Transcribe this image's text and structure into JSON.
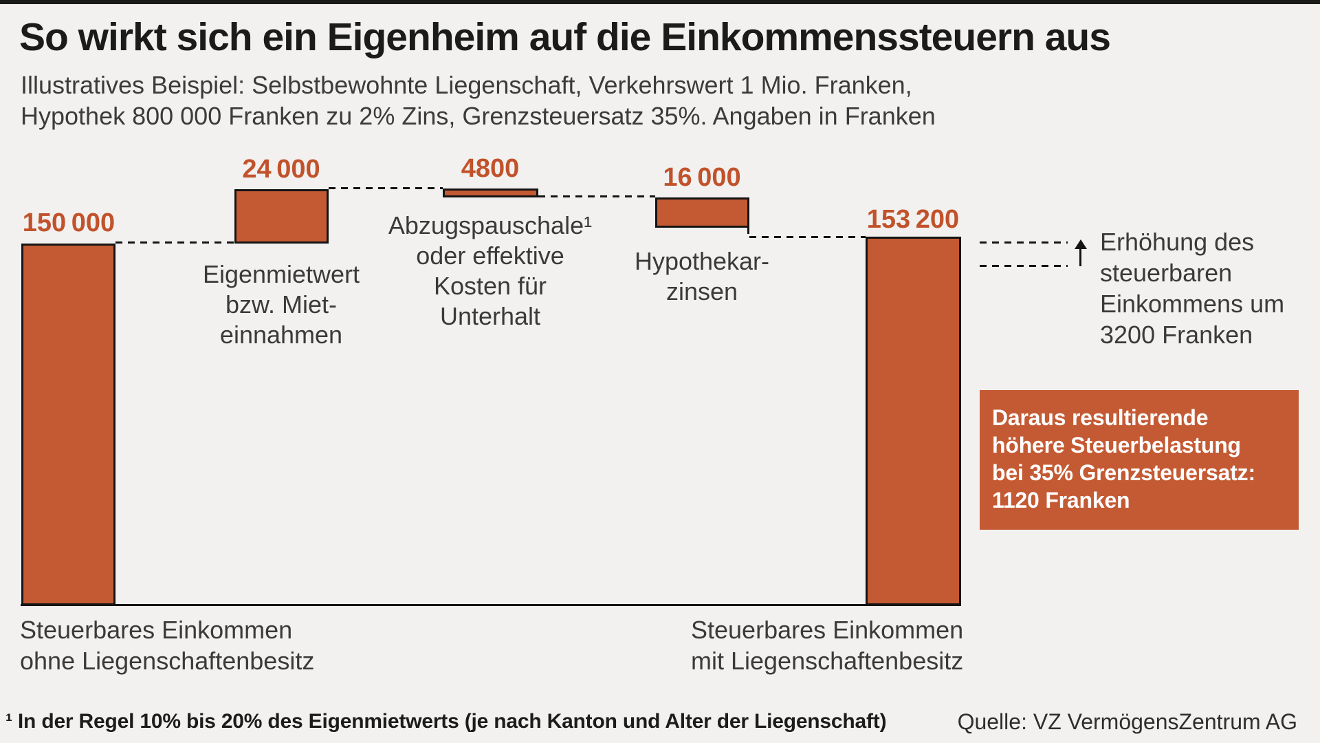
{
  "header": {
    "title": "So wirkt sich ein Eigenheim auf die Einkommenssteuern aus",
    "subtitle_line1": "Illustratives Beispiel: Selbstbewohnte Liegenschaft, Verkehrswert 1 Mio. Franken,",
    "subtitle_line2": "Hypothek 800 000 Franken zu 2% Zins, Grenzsteuersatz 35%. Angaben in Franken"
  },
  "chart_data": {
    "type": "bar",
    "variant": "waterfall",
    "unit": "Franken",
    "ylim": [
      0,
      175000
    ],
    "grid": false,
    "bars": [
      {
        "name": "steuerbares-einkommen-ohne",
        "kind": "total",
        "value": 150000,
        "start": 0,
        "end": 150000,
        "display_value": "150 000",
        "label_lines": [
          "Steuerbares Einkommen",
          "ohne Liegenschaftenbesitz"
        ]
      },
      {
        "name": "eigenmietwert",
        "kind": "increase",
        "value": 24000,
        "start": 150000,
        "end": 174000,
        "display_value": "24 000",
        "label_lines": [
          "Eigenmietwert",
          "bzw. Miet-",
          "einnahmen"
        ]
      },
      {
        "name": "abzugspauschale",
        "kind": "decrease",
        "value": -4800,
        "start": 174000,
        "end": 169200,
        "display_value": "4800",
        "label_lines": [
          "Abzugspauschale¹",
          "oder effektive",
          "Kosten für",
          "Unterhalt"
        ]
      },
      {
        "name": "hypothekarzinsen",
        "kind": "decrease",
        "value": -16000,
        "start": 169200,
        "end": 153200,
        "display_value": "16 000",
        "label_lines": [
          "Hypothekar-",
          "zinsen"
        ]
      },
      {
        "name": "steuerbares-einkommen-mit",
        "kind": "total",
        "value": 153200,
        "start": 0,
        "end": 153200,
        "display_value": "153 200",
        "label_lines": [
          "Steuerbares Einkommen",
          "mit Liegenschaftenbesitz"
        ]
      }
    ],
    "annotation": {
      "delta": 3200,
      "text": "Erhöhung des steuerbaren Einkommens um 3200 Franken",
      "lines": [
        "Erhöhung des",
        "steuerbaren",
        "Einkommens um",
        "3200 Franken"
      ]
    },
    "callout": {
      "tax_increase_franken": 1120,
      "marginal_rate": "35%",
      "text": "Daraus resultierende höhere Steuerbelastung bei 35% Grenzsteuersatz: 1120 Franken",
      "lines": [
        "Daraus resultierende",
        "höhere Steuerbelastung",
        "bei 35% Grenzsteuersatz:",
        "1120 Franken"
      ]
    }
  },
  "footnote": {
    "text": "¹ In der Regel 10% bis 20% des Eigenmietwerts (je nach Kanton und Alter der Liegenschaft)"
  },
  "source": {
    "text": "Quelle: VZ VermögensZentrum AG"
  },
  "colors": {
    "background": "#f2f1ef",
    "top_strip": "#1a1a18",
    "bar_fill": "#c45a33",
    "bar_border": "#141414",
    "value_text": "#c1522b",
    "callout_bg": "#c45a33",
    "callout_text": "#ffffff",
    "body_text": "#3a3a38",
    "title_text": "#1b1b19"
  }
}
